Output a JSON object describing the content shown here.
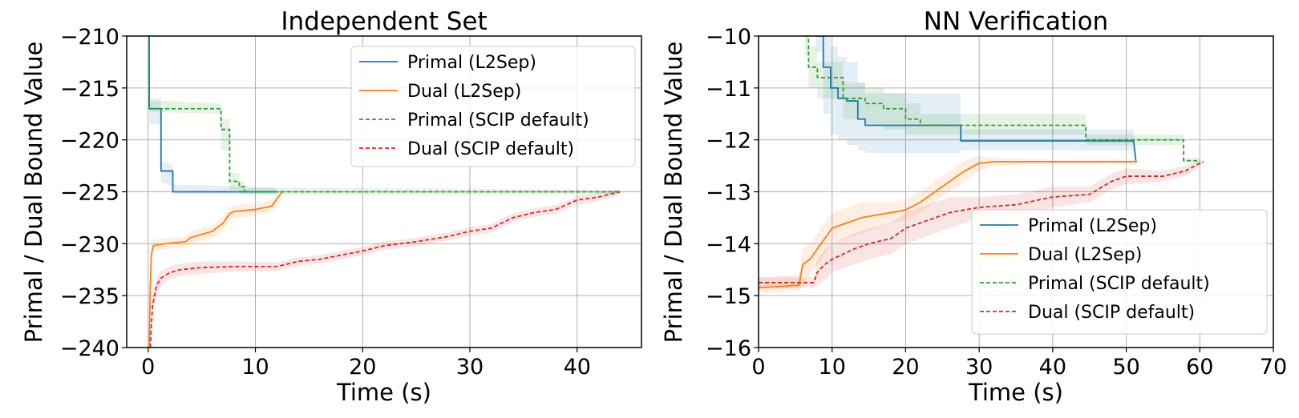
{
  "chart_data": [
    {
      "type": "line",
      "title": "Independent Set",
      "xlabel": "Time (s)",
      "ylabel": "Primal / Dual Bound Value",
      "xlim": [
        -2,
        46
      ],
      "ylim": [
        -240,
        -210
      ],
      "xticks": [
        0,
        10,
        20,
        30,
        40
      ],
      "yticks": [
        -240,
        -235,
        -230,
        -225,
        -220,
        -215,
        -210
      ],
      "xtick_labels": [
        "0",
        "10",
        "20",
        "30",
        "40"
      ],
      "ytick_labels": [
        "−240",
        "−235",
        "−230",
        "−225",
        "−220",
        "−215",
        "−210"
      ],
      "grid": true,
      "legend_position": "top-right",
      "series": [
        {
          "name": "Primal (L2Sep)",
          "color": "#1f77b4",
          "dash": "solid",
          "x": [
            0,
            0.1,
            0.1,
            1.2,
            1.2,
            2.3,
            2.3,
            12.0
          ],
          "y": [
            -210,
            -210,
            -217,
            -217,
            -223,
            -223,
            -225,
            -225
          ],
          "band_lo": [
            -210,
            -210,
            -218.5,
            -218.5,
            -224,
            -224.5,
            -225.2,
            -225.2
          ],
          "band_hi": [
            -210,
            -210,
            -216,
            -216,
            -222,
            -222.5,
            -224.3,
            -224.6
          ]
        },
        {
          "name": "Dual (L2Sep)",
          "color": "#ff7f0e",
          "dash": "solid",
          "x": [
            0.1,
            0.2,
            0.3,
            0.5,
            1.5,
            3.5,
            4.0,
            6.0,
            7.0,
            7.6,
            8.0,
            10.0,
            11.5,
            12.5
          ],
          "y": [
            -240,
            -234,
            -231,
            -230.2,
            -230,
            -229.8,
            -229.4,
            -228.8,
            -228.0,
            -227.1,
            -226.9,
            -226.7,
            -226.4,
            -225.0
          ],
          "band_lo": [
            -240,
            -235,
            -232,
            -230.8,
            -230.5,
            -230.3,
            -230.0,
            -229.4,
            -228.7,
            -227.7,
            -227.5,
            -227.3,
            -227.0,
            -225.3
          ],
          "band_hi": [
            -240,
            -233,
            -230,
            -229.6,
            -229.5,
            -229.3,
            -228.8,
            -228.2,
            -227.4,
            -226.5,
            -226.3,
            -226.1,
            -225.8,
            -224.7
          ]
        },
        {
          "name": "Primal (SCIP default)",
          "color": "#2ca02c",
          "dash": "dashed",
          "x": [
            0,
            0.1,
            0.1,
            6.8,
            6.8,
            7.6,
            7.6,
            8.5,
            8.5,
            9.0,
            9.0,
            44.0
          ],
          "y": [
            -210,
            -210,
            -217,
            -217,
            -219,
            -219,
            -224,
            -224,
            -224.5,
            -224.5,
            -225,
            -225
          ],
          "band_lo": [
            -210,
            -210,
            -217.3,
            -217.5,
            -221,
            -221,
            -224.8,
            -224.8,
            -225.2,
            -225.2,
            -225.3,
            -225.2
          ],
          "band_hi": [
            -210,
            -210,
            -216.2,
            -216.5,
            -218,
            -218,
            -223.2,
            -223.2,
            -224,
            -224,
            -224.6,
            -224.8
          ]
        },
        {
          "name": "Dual (SCIP default)",
          "color": "#d62728",
          "dash": "dashed",
          "x": [
            0.2,
            0.4,
            0.8,
            1.2,
            2.0,
            3.0,
            5.0,
            8.0,
            12.0,
            14.0,
            16.0,
            18.0,
            20.0,
            22.0,
            25.0,
            28.0,
            30.0,
            32.0,
            34.0,
            36.0,
            38.0,
            40.0,
            42.0,
            44.0
          ],
          "y": [
            -240,
            -236,
            -234,
            -233.3,
            -232.8,
            -232.5,
            -232.3,
            -232.2,
            -232.2,
            -231.7,
            -231.5,
            -231.1,
            -230.7,
            -230.2,
            -229.8,
            -229.3,
            -228.8,
            -228.5,
            -227.5,
            -227.0,
            -226.7,
            -225.8,
            -225.5,
            -225.0
          ],
          "band_lo": [
            -240,
            -237,
            -234.8,
            -234.0,
            -233.4,
            -233.1,
            -232.9,
            -232.7,
            -232.6,
            -232.1,
            -231.9,
            -231.5,
            -231.1,
            -230.6,
            -230.2,
            -229.7,
            -229.2,
            -228.9,
            -227.9,
            -227.4,
            -227.1,
            -226.2,
            -225.9,
            -225.2
          ],
          "band_hi": [
            -240,
            -235,
            -233.2,
            -232.6,
            -232.2,
            -231.9,
            -231.7,
            -231.7,
            -231.8,
            -231.3,
            -231.1,
            -230.7,
            -230.3,
            -229.8,
            -229.4,
            -228.9,
            -228.4,
            -228.1,
            -227.1,
            -226.6,
            -226.3,
            -225.4,
            -225.1,
            -224.8
          ]
        }
      ]
    },
    {
      "type": "line",
      "title": "NN Verification",
      "xlabel": "Time (s)",
      "ylabel": "Primal / Dual Bound Value",
      "xlim": [
        0,
        70
      ],
      "ylim": [
        -16,
        -10
      ],
      "xticks": [
        0,
        10,
        20,
        30,
        40,
        50,
        60,
        70
      ],
      "yticks": [
        -16,
        -15,
        -14,
        -13,
        -12,
        -11,
        -10
      ],
      "xtick_labels": [
        "0",
        "10",
        "20",
        "30",
        "40",
        "50",
        "60",
        "70"
      ],
      "ytick_labels": [
        "−16",
        "−15",
        "−14",
        "−13",
        "−12",
        "−11",
        "−10"
      ],
      "grid": true,
      "legend_position": "lower-right",
      "series": [
        {
          "name": "Primal (L2Sep)",
          "color": "#1f77b4",
          "dash": "solid",
          "x": [
            7.8,
            8.8,
            8.8,
            9.8,
            9.8,
            10.8,
            10.8,
            12.0,
            12.0,
            13.5,
            13.5,
            14.5,
            14.5,
            27.5,
            27.5,
            51.0,
            51.3
          ],
          "y": [
            -10.0,
            -10.0,
            -10.6,
            -10.6,
            -11.0,
            -11.0,
            -11.2,
            -11.2,
            -11.25,
            -11.25,
            -11.6,
            -11.6,
            -11.72,
            -11.72,
            -12.02,
            -12.02,
            -12.4
          ],
          "band_lo": [
            -10.3,
            -10.3,
            -11.5,
            -11.5,
            -11.9,
            -11.9,
            -12.0,
            -12.0,
            -12.1,
            -12.1,
            -12.2,
            -12.2,
            -12.25,
            -12.25,
            -12.2,
            -12.2,
            -12.5
          ],
          "band_hi": [
            -10.0,
            -10.0,
            -10.0,
            -10.0,
            -10.2,
            -10.2,
            -10.4,
            -10.4,
            -10.5,
            -10.5,
            -10.9,
            -10.9,
            -11.1,
            -11.1,
            -11.8,
            -11.8,
            -12.3
          ]
        },
        {
          "name": "Dual (L2Sep)",
          "color": "#ff7f0e",
          "dash": "solid",
          "x": [
            0,
            5.5,
            6.0,
            7.0,
            8.0,
            9.0,
            10.0,
            12.0,
            14.0,
            16.0,
            18.0,
            20.0,
            22.0,
            24.0,
            26.0,
            28.0,
            30.0,
            32.0,
            40.0,
            51.5
          ],
          "y": [
            -14.85,
            -14.8,
            -14.4,
            -14.3,
            -14.1,
            -13.9,
            -13.7,
            -13.6,
            -13.5,
            -13.45,
            -13.4,
            -13.35,
            -13.2,
            -13.0,
            -12.8,
            -12.6,
            -12.45,
            -12.42,
            -12.42,
            -12.42
          ],
          "band_lo": [
            -14.95,
            -14.9,
            -14.8,
            -14.6,
            -14.4,
            -14.2,
            -14.0,
            -13.9,
            -13.8,
            -13.7,
            -13.6,
            -13.55,
            -13.4,
            -13.2,
            -13.0,
            -12.8,
            -12.6,
            -12.5,
            -12.45,
            -12.45
          ],
          "band_hi": [
            -14.65,
            -14.6,
            -14.1,
            -14.0,
            -13.8,
            -13.6,
            -13.4,
            -13.3,
            -13.2,
            -13.2,
            -13.2,
            -13.15,
            -13.0,
            -12.8,
            -12.6,
            -12.4,
            -12.3,
            -12.35,
            -12.38,
            -12.38
          ]
        },
        {
          "name": "Primal (SCIP default)",
          "color": "#2ca02c",
          "dash": "dashed",
          "x": [
            6.3,
            6.8,
            6.8,
            8.0,
            8.0,
            11.5,
            11.5,
            14.5,
            14.5,
            17.0,
            17.0,
            20.0,
            20.0,
            22.0,
            22.0,
            44.5,
            44.5,
            57.8,
            57.8,
            60.0
          ],
          "y": [
            -10.0,
            -10.0,
            -10.6,
            -10.6,
            -10.8,
            -10.8,
            -11.2,
            -11.2,
            -11.3,
            -11.3,
            -11.4,
            -11.4,
            -11.6,
            -11.6,
            -11.72,
            -11.72,
            -12.0,
            -12.0,
            -12.4,
            -12.4
          ],
          "band_lo": [
            -10.4,
            -10.4,
            -11.0,
            -11.0,
            -11.2,
            -11.2,
            -11.6,
            -11.6,
            -11.7,
            -11.7,
            -11.8,
            -11.8,
            -11.9,
            -11.9,
            -11.9,
            -11.9,
            -12.1,
            -12.1,
            -12.45,
            -12.45
          ],
          "band_hi": [
            -10.0,
            -10.0,
            -10.2,
            -10.2,
            -10.5,
            -10.5,
            -10.9,
            -10.9,
            -11.0,
            -11.0,
            -11.1,
            -11.1,
            -11.3,
            -11.3,
            -11.5,
            -11.5,
            -11.9,
            -11.9,
            -12.35,
            -12.35
          ]
        },
        {
          "name": "Dual (SCIP default)",
          "color": "#d62728",
          "dash": "dashed",
          "x": [
            0,
            7.5,
            8.0,
            9.0,
            10.0,
            13.0,
            15.0,
            18.0,
            20.0,
            22.0,
            24.0,
            26.0,
            28.0,
            30.0,
            35.0,
            40.0,
            45.0,
            48.0,
            50.0,
            55.0,
            58.0,
            60.0,
            60.5
          ],
          "y": [
            -14.75,
            -14.75,
            -14.55,
            -14.4,
            -14.3,
            -14.1,
            -14.0,
            -13.9,
            -13.7,
            -13.6,
            -13.5,
            -13.4,
            -13.35,
            -13.3,
            -13.25,
            -13.1,
            -13.05,
            -12.8,
            -12.7,
            -12.7,
            -12.6,
            -12.45,
            -12.42
          ],
          "band_lo": [
            -14.85,
            -14.85,
            -14.8,
            -14.7,
            -14.55,
            -14.4,
            -14.3,
            -14.2,
            -14.0,
            -13.9,
            -13.8,
            -13.7,
            -13.6,
            -13.5,
            -13.45,
            -13.3,
            -13.2,
            -12.95,
            -12.85,
            -12.8,
            -12.7,
            -12.5,
            -12.45
          ],
          "band_hi": [
            -14.65,
            -14.65,
            -14.3,
            -14.1,
            -14.0,
            -13.8,
            -13.7,
            -13.6,
            -13.4,
            -13.3,
            -13.2,
            -13.1,
            -13.1,
            -13.1,
            -13.05,
            -12.9,
            -12.9,
            -12.65,
            -12.55,
            -12.6,
            -12.5,
            -12.4,
            -12.39
          ]
        }
      ]
    }
  ]
}
